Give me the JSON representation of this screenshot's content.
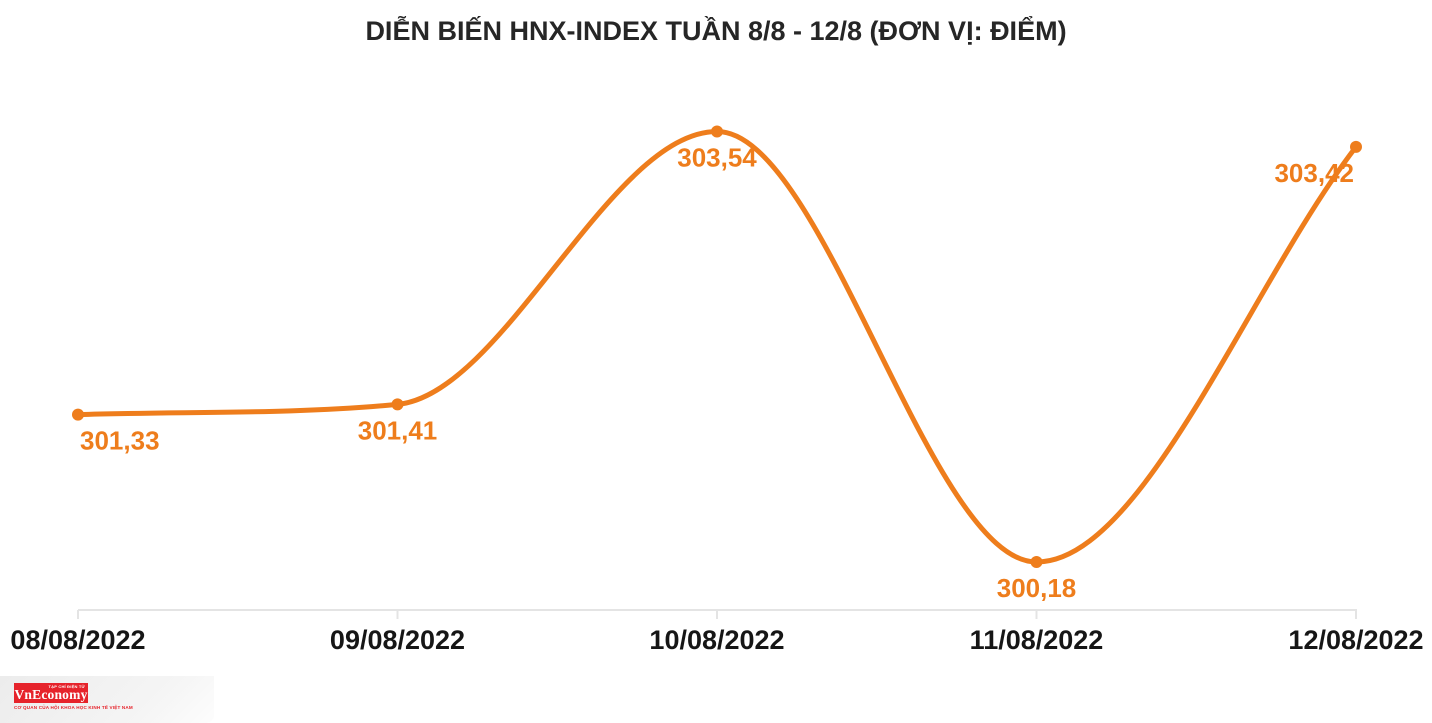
{
  "chart_data": {
    "type": "line",
    "title": "DIỄN BIẾN HNX-INDEX TUẦN 8/8 - 12/8 (ĐƠN VỊ: ĐIỂM)",
    "categories": [
      "08/08/2022",
      "09/08/2022",
      "10/08/2022",
      "11/08/2022",
      "12/08/2022"
    ],
    "series": [
      {
        "name": "HNX-Index",
        "values": [
          301.33,
          301.41,
          303.54,
          300.18,
          303.42
        ]
      }
    ],
    "point_labels": [
      "301,33",
      "301,41",
      "303,54",
      "300,18",
      "303,42"
    ],
    "xlabel": "",
    "ylabel": "",
    "unit": "ĐIỂM",
    "ylim": [
      299.8,
      303.9
    ],
    "grid": false,
    "legend_position": "none",
    "smooth": true,
    "colors": {
      "line": "#EE7D1C",
      "marker": "#EE7D1C",
      "point_label": "#EE7D1C",
      "axis_line": "#E4E4E4",
      "axis_label": "#161616",
      "title": "#262626"
    }
  },
  "footer": {
    "logo": {
      "brand": "VnEconomy",
      "tagline_top": "TẠP CHÍ ĐIỆN TỬ",
      "tagline_bottom": "CƠ QUAN CỦA HỘI KHOA HỌC KINH TẾ VIỆT NAM",
      "bg_color": "#E6232B",
      "text_color": "#E6232B"
    }
  }
}
